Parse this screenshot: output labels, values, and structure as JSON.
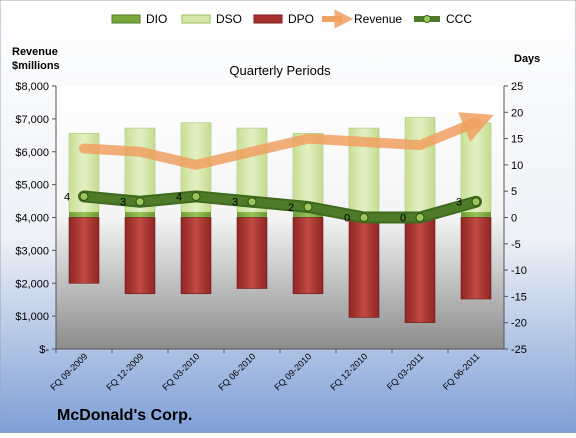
{
  "company": "McDonald's Corp.",
  "chart_data": {
    "type": "bar",
    "title": "Quarterly Periods",
    "left_axis_label": [
      "Revenue",
      "$millions"
    ],
    "right_axis_label": "Days",
    "left_ticks": [
      "$-",
      "$1,000",
      "$2,000",
      "$3,000",
      "$4,000",
      "$5,000",
      "$6,000",
      "$7,000",
      "$8,000"
    ],
    "right_ticks": [
      "-25",
      "-20",
      "-15",
      "-10",
      "-5",
      "0",
      "5",
      "10",
      "15",
      "20",
      "25"
    ],
    "left_range": [
      0,
      8000
    ],
    "right_range": [
      -25,
      25
    ],
    "categories": [
      "FQ 09-2009",
      "FQ 12-2009",
      "FQ 03-2010",
      "FQ 06-2010",
      "FQ 09-2010",
      "FQ 12-2010",
      "FQ 03-2011",
      "FQ 06-2011"
    ],
    "legend": [
      "DIO",
      "DSO",
      "DPO",
      "Revenue",
      "CCC"
    ],
    "series": [
      {
        "name": "DIO",
        "axis": "days",
        "values": [
          1,
          1,
          1,
          1,
          1,
          1,
          1,
          1
        ]
      },
      {
        "name": "DSO",
        "axis": "days",
        "values": [
          15,
          16,
          17,
          16,
          15,
          16,
          18,
          17
        ]
      },
      {
        "name": "DPO",
        "axis": "days",
        "values": [
          -12.5,
          -14.5,
          -14.5,
          -13.5,
          -14.5,
          -19,
          -20,
          -15.5
        ]
      },
      {
        "name": "Revenue",
        "axis": "revenue",
        "values": [
          6100,
          6000,
          5600,
          6000,
          6400,
          6300,
          6200,
          6900
        ]
      },
      {
        "name": "CCC",
        "axis": "days",
        "values": [
          4,
          3,
          4,
          3,
          2,
          0,
          0,
          3
        ],
        "labels": [
          "4",
          "3",
          "4",
          "3",
          "2",
          "0",
          "0",
          "3"
        ]
      }
    ],
    "colors": {
      "DIO": "#7aa83b",
      "DSO": "#d6e8a8",
      "DPO": "#a8302c",
      "Revenue": "#f0a060",
      "CCC": "#4f7a28"
    },
    "legend_position": "top",
    "grid": false
  }
}
